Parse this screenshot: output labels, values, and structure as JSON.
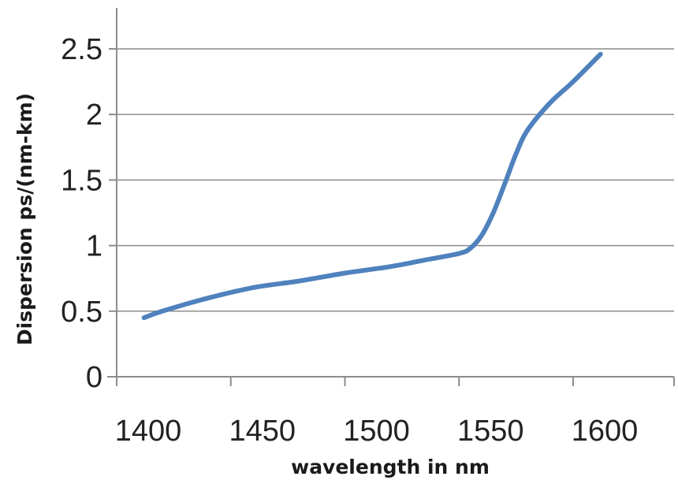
{
  "chart_data": {
    "type": "line",
    "title": "",
    "xlabel": "wavelength in nm",
    "ylabel": "Dispersion ps/(nm-km)",
    "xlim": [
      1400,
      1650
    ],
    "ylim": [
      0,
      2.5
    ],
    "x_ticks": [
      1400,
      1450,
      1500,
      1550,
      1600
    ],
    "y_ticks": [
      0,
      0.5,
      1,
      1.5,
      2,
      2.5
    ],
    "y_tick_labels": [
      "0",
      "0.5",
      "1",
      "1.5",
      "2",
      "2.5"
    ],
    "grid": true,
    "legend": false,
    "series": [
      {
        "color": "#4f81bd",
        "x": [
          1412,
          1420,
          1440,
          1460,
          1480,
          1500,
          1520,
          1535,
          1550,
          1555,
          1560,
          1565,
          1570,
          1575,
          1580,
          1590,
          1600,
          1612
        ],
        "y": [
          0.45,
          0.5,
          0.6,
          0.68,
          0.73,
          0.79,
          0.84,
          0.89,
          0.94,
          0.98,
          1.08,
          1.25,
          1.47,
          1.7,
          1.88,
          2.09,
          2.25,
          2.46
        ]
      }
    ]
  }
}
